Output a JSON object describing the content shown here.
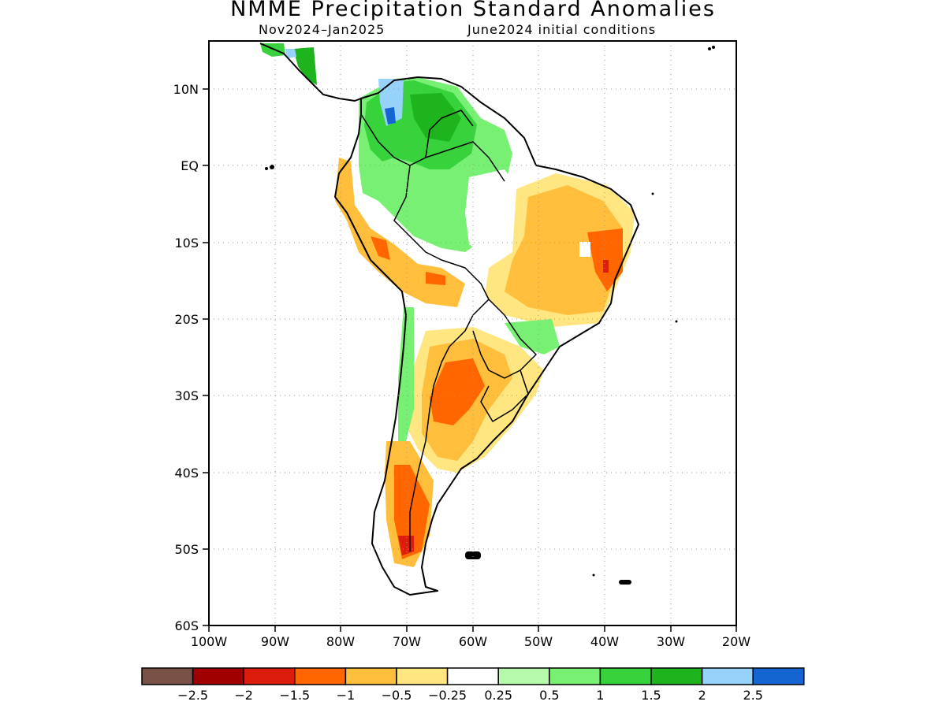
{
  "title": "NMME Precipitation Standard Anomalies",
  "subtitle_left": "Nov2024–Jan2025",
  "subtitle_right": "June2024 initial conditions",
  "map": {
    "lat_ticks": [
      "10N",
      "EQ",
      "10S",
      "20S",
      "30S",
      "40S",
      "50S",
      "60S"
    ],
    "lon_ticks": [
      "100W",
      "90W",
      "80W",
      "70W",
      "60W",
      "50W",
      "40W",
      "30W",
      "20W"
    ],
    "lon_range": [
      -100,
      -20
    ],
    "lat_range": [
      -60,
      16
    ]
  },
  "colorbar": {
    "colors": [
      "#7a5147",
      "#a00000",
      "#dc1c0c",
      "#ff6600",
      "#ffbe3c",
      "#ffe680",
      "#ffffff",
      "#b4faaa",
      "#78f073",
      "#37d23c",
      "#1eb41e",
      "#96d2fa",
      "#1464d2"
    ],
    "labels": [
      "−2.5",
      "−2",
      "−1.5",
      "−1",
      "−0.5",
      "−0.25",
      "0.25",
      "0.5",
      "1",
      "1.5",
      "2",
      "2.5"
    ]
  }
}
